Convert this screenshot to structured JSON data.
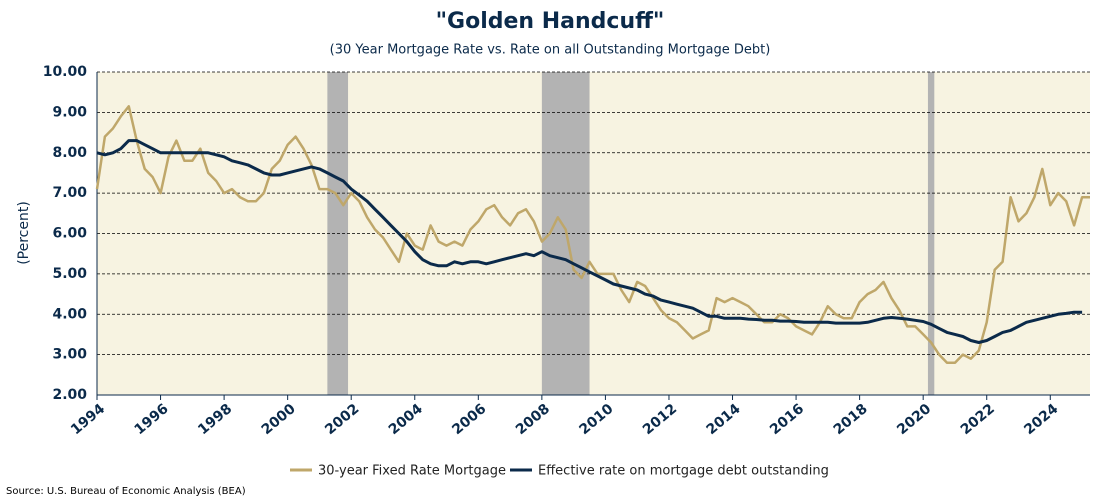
{
  "chart_data": {
    "type": "line",
    "title": "\"Golden Handcuff\"",
    "subtitle": "(30 Year Mortgage Rate vs. Rate on all Outstanding Mortgage Debt)",
    "y_label": "(Percent)",
    "source": "Source: U.S. Bureau of Economic Analysis (BEA)",
    "xlim": [
      1994,
      2025.25
    ],
    "xticks": [
      1994,
      1996,
      1998,
      2000,
      2002,
      2004,
      2006,
      2008,
      2010,
      2012,
      2014,
      2016,
      2018,
      2020,
      2022,
      2024
    ],
    "ylim": [
      2,
      10
    ],
    "yticks": [
      {
        "value": 2,
        "label": "2.00"
      },
      {
        "value": 3,
        "label": "3.00"
      },
      {
        "value": 4,
        "label": "4.00"
      },
      {
        "value": 5,
        "label": "5.00"
      },
      {
        "value": 6,
        "label": "6.00"
      },
      {
        "value": 7,
        "label": "7.00"
      },
      {
        "value": 8,
        "label": "8.00"
      },
      {
        "value": 9,
        "label": "9.00"
      },
      {
        "value": 10,
        "label": "10.00"
      }
    ],
    "grid": true,
    "legend": "bottom",
    "shaded_periods": [
      [
        2001.25,
        2001.9
      ],
      [
        2008.0,
        2009.5
      ],
      [
        2020.15,
        2020.35
      ]
    ],
    "shade_color": "#b3b3b3",
    "x": [
      1994,
      1994.25,
      1994.5,
      1994.75,
      1995,
      1995.25,
      1995.5,
      1995.75,
      1996,
      1996.25,
      1996.5,
      1996.75,
      1997,
      1997.25,
      1997.5,
      1997.75,
      1998,
      1998.25,
      1998.5,
      1998.75,
      1999,
      1999.25,
      1999.5,
      1999.75,
      2000,
      2000.25,
      2000.5,
      2000.75,
      2001,
      2001.25,
      2001.5,
      2001.75,
      2002,
      2002.25,
      2002.5,
      2002.75,
      2003,
      2003.25,
      2003.5,
      2003.75,
      2004,
      2004.25,
      2004.5,
      2004.75,
      2005,
      2005.25,
      2005.5,
      2005.75,
      2006,
      2006.25,
      2006.5,
      2006.75,
      2007,
      2007.25,
      2007.5,
      2007.75,
      2008,
      2008.25,
      2008.5,
      2008.75,
      2009,
      2009.25,
      2009.5,
      2009.75,
      2010,
      2010.25,
      2010.5,
      2010.75,
      2011,
      2011.25,
      2011.5,
      2011.75,
      2012,
      2012.25,
      2012.5,
      2012.75,
      2013,
      2013.25,
      2013.5,
      2013.75,
      2014,
      2014.25,
      2014.5,
      2014.75,
      2015,
      2015.25,
      2015.5,
      2015.75,
      2016,
      2016.25,
      2016.5,
      2016.75,
      2017,
      2017.25,
      2017.5,
      2017.75,
      2018,
      2018.25,
      2018.5,
      2018.75,
      2019,
      2019.25,
      2019.5,
      2019.75,
      2020,
      2020.25,
      2020.5,
      2020.75,
      2021,
      2021.25,
      2021.5,
      2021.75,
      2022,
      2022.25,
      2022.5,
      2022.75,
      2023,
      2023.25,
      2023.5,
      2023.75,
      2024,
      2024.25,
      2024.5,
      2024.75,
      2025,
      2025.25
    ],
    "series": [
      {
        "name": "30-year Fixed Rate Mortgage",
        "color": "#bfa76a",
        "values": [
          7.1,
          8.4,
          8.6,
          8.9,
          9.15,
          8.3,
          7.6,
          7.4,
          7.0,
          7.9,
          8.3,
          7.8,
          7.8,
          8.1,
          7.5,
          7.3,
          7.0,
          7.1,
          6.9,
          6.8,
          6.8,
          7.0,
          7.6,
          7.8,
          8.2,
          8.4,
          8.1,
          7.7,
          7.1,
          7.1,
          7.0,
          6.7,
          7.0,
          6.8,
          6.4,
          6.1,
          5.9,
          5.6,
          5.3,
          6.0,
          5.7,
          5.6,
          6.2,
          5.8,
          5.7,
          5.8,
          5.7,
          6.1,
          6.3,
          6.6,
          6.7,
          6.4,
          6.2,
          6.5,
          6.6,
          6.3,
          5.8,
          6.0,
          6.4,
          6.1,
          5.1,
          4.9,
          5.3,
          5.0,
          5.0,
          5.0,
          4.6,
          4.3,
          4.8,
          4.7,
          4.4,
          4.1,
          3.9,
          3.8,
          3.6,
          3.4,
          3.5,
          3.6,
          4.4,
          4.3,
          4.4,
          4.3,
          4.2,
          4.0,
          3.8,
          3.8,
          4.0,
          3.9,
          3.7,
          3.6,
          3.5,
          3.8,
          4.2,
          4.0,
          3.9,
          3.9,
          4.3,
          4.5,
          4.6,
          4.8,
          4.4,
          4.1,
          3.7,
          3.7,
          3.5,
          3.3,
          3.0,
          2.8,
          2.8,
          3.0,
          2.9,
          3.1,
          3.8,
          5.1,
          5.3,
          6.9,
          6.3,
          6.5,
          6.9,
          7.6,
          6.7,
          7.0,
          6.8,
          6.2,
          6.9,
          6.9
        ]
      },
      {
        "name": "Effective rate on mortgage debt outstanding",
        "color": "#0b2a4a",
        "values": [
          8.0,
          7.95,
          8.0,
          8.1,
          8.3,
          8.3,
          8.2,
          8.1,
          8.0,
          8.0,
          8.0,
          8.0,
          8.0,
          8.0,
          8.0,
          7.95,
          7.9,
          7.8,
          7.75,
          7.7,
          7.6,
          7.5,
          7.45,
          7.45,
          7.5,
          7.55,
          7.6,
          7.65,
          7.6,
          7.5,
          7.4,
          7.3,
          7.1,
          6.95,
          6.8,
          6.6,
          6.4,
          6.2,
          6.0,
          5.8,
          5.55,
          5.35,
          5.25,
          5.2,
          5.2,
          5.3,
          5.25,
          5.3,
          5.3,
          5.25,
          5.3,
          5.35,
          5.4,
          5.45,
          5.5,
          5.45,
          5.55,
          5.45,
          5.4,
          5.35,
          5.25,
          5.15,
          5.05,
          4.95,
          4.85,
          4.75,
          4.7,
          4.65,
          4.6,
          4.5,
          4.45,
          4.35,
          4.3,
          4.25,
          4.2,
          4.15,
          4.05,
          3.95,
          3.95,
          3.9,
          3.9,
          3.9,
          3.88,
          3.87,
          3.85,
          3.85,
          3.83,
          3.83,
          3.82,
          3.8,
          3.8,
          3.8,
          3.8,
          3.78,
          3.78,
          3.78,
          3.78,
          3.8,
          3.85,
          3.9,
          3.92,
          3.9,
          3.88,
          3.85,
          3.82,
          3.75,
          3.65,
          3.55,
          3.5,
          3.45,
          3.35,
          3.3,
          3.35,
          3.45,
          3.55,
          3.6,
          3.7,
          3.8,
          3.85,
          3.9,
          3.95,
          4.0,
          4.02,
          4.05,
          4.05,
          null
        ]
      }
    ]
  }
}
